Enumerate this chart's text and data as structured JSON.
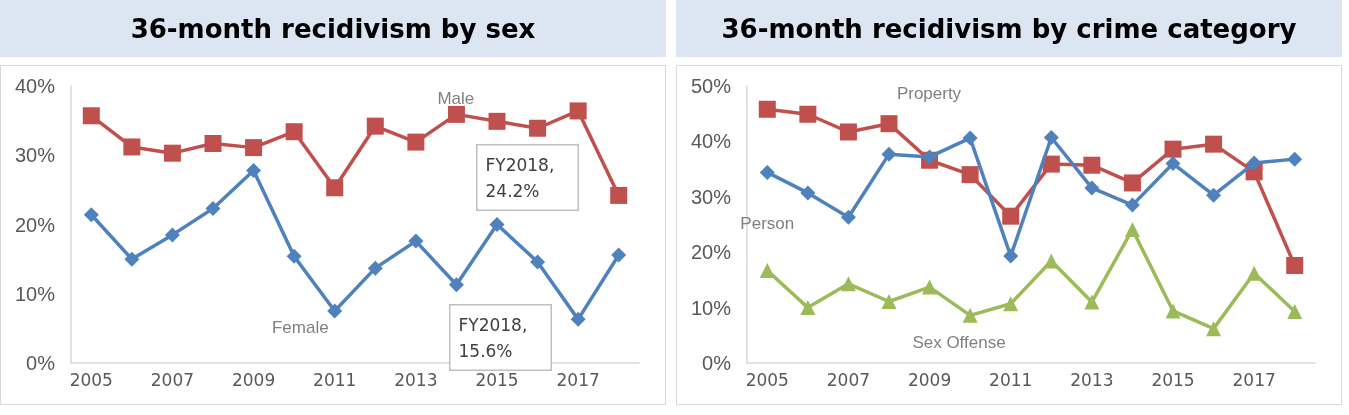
{
  "chart_data": [
    {
      "type": "line",
      "title": "36-month recidivism by sex",
      "categories": [
        "2005",
        null,
        "2007",
        null,
        "2009",
        null,
        "2011",
        null,
        "2013",
        null,
        "2015",
        null,
        "2017",
        null
      ],
      "ylim": [
        0,
        40
      ],
      "yticks": [
        {
          "value": 0,
          "label": "0%"
        },
        {
          "value": 10,
          "label": "10%"
        },
        {
          "value": 20,
          "label": "20%"
        },
        {
          "value": 30,
          "label": "30%"
        },
        {
          "value": 40,
          "label": "40%"
        }
      ],
      "grid": false,
      "legend": false,
      "series": [
        {
          "name": "Male",
          "color": "#c0504d",
          "marker": "square",
          "values": [
            35.7,
            31.2,
            30.3,
            31.7,
            31.1,
            33.4,
            25.3,
            34.2,
            31.9,
            35.9,
            34.9,
            33.9,
            36.4,
            24.2
          ]
        },
        {
          "name": "Female",
          "color": "#4f81bd",
          "marker": "diamond",
          "values": [
            21.4,
            15.0,
            18.5,
            22.3,
            27.8,
            15.4,
            7.5,
            13.7,
            17.6,
            11.3,
            20.0,
            14.6,
            6.3,
            15.6
          ]
        }
      ],
      "annotations": [
        "FY2018, 24.2%",
        "FY2018, 15.6%"
      ]
    },
    {
      "type": "line",
      "title": "36-month recidivism by crime category",
      "categories": [
        "2005",
        null,
        "2007",
        null,
        "2009",
        null,
        "2011",
        null,
        "2013",
        null,
        "2015",
        null,
        "2017",
        null
      ],
      "ylim": [
        0,
        50
      ],
      "yticks": [
        {
          "value": 0,
          "label": "0%"
        },
        {
          "value": 10,
          "label": "10%"
        },
        {
          "value": 20,
          "label": "20%"
        },
        {
          "value": 30,
          "label": "30%"
        },
        {
          "value": 40,
          "label": "40%"
        },
        {
          "value": 50,
          "label": "50%"
        }
      ],
      "grid": false,
      "legend": false,
      "series": [
        {
          "name": "Person",
          "color": "#4f81bd",
          "marker": "diamond",
          "values": [
            34.4,
            30.7,
            26.3,
            37.7,
            37.2,
            40.6,
            19.3,
            40.7,
            31.6,
            28.5,
            36.0,
            30.3,
            36.1,
            36.8
          ]
        },
        {
          "name": "Property",
          "color": "#c0504d",
          "marker": "square",
          "values": [
            45.8,
            44.9,
            41.7,
            43.2,
            36.6,
            34.0,
            26.5,
            35.9,
            35.7,
            32.5,
            38.6,
            39.5,
            34.5,
            17.6
          ]
        },
        {
          "name": "Sex Offense",
          "color": "#9bbb59",
          "marker": "triangle",
          "values": [
            16.7,
            10.0,
            14.3,
            11.1,
            13.7,
            8.6,
            10.7,
            18.4,
            11.0,
            24.1,
            9.4,
            6.2,
            16.2,
            9.3
          ]
        }
      ]
    }
  ]
}
